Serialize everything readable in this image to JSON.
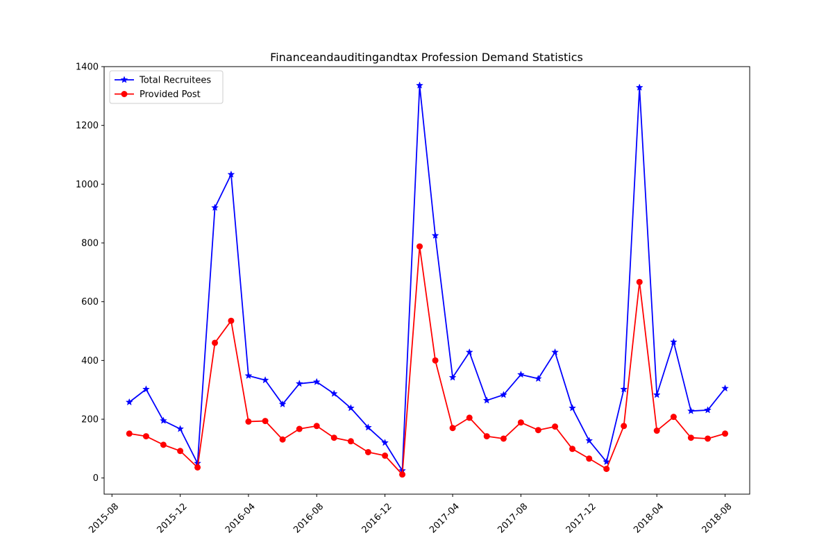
{
  "chart_data": {
    "type": "line",
    "title": "Financeandauditingandtax Profession Demand Statistics",
    "xlabel": "",
    "ylabel": "",
    "x": [
      "2015-09",
      "2015-10",
      "2015-11",
      "2015-12",
      "2016-01",
      "2016-02",
      "2016-03",
      "2016-04",
      "2016-05",
      "2016-06",
      "2016-07",
      "2016-08",
      "2016-09",
      "2016-10",
      "2016-11",
      "2016-12",
      "2017-01",
      "2017-02",
      "2017-03",
      "2017-04",
      "2017-05",
      "2017-06",
      "2017-07",
      "2017-08",
      "2017-09",
      "2017-10",
      "2017-11",
      "2017-12",
      "2018-01",
      "2018-02",
      "2018-03",
      "2018-04",
      "2018-05",
      "2018-06",
      "2018-07",
      "2018-08"
    ],
    "xticks": [
      "2015-08",
      "2015-12",
      "2016-04",
      "2016-08",
      "2016-12",
      "2017-04",
      "2017-08",
      "2017-12",
      "2018-04",
      "2018-08"
    ],
    "xlim": [
      "2015-07-18",
      "2018-09-14"
    ],
    "ylim": [
      -55,
      1400
    ],
    "yticks": [
      0,
      200,
      400,
      600,
      800,
      1000,
      1200,
      1400
    ],
    "grid": false,
    "legend_position": "top-left",
    "series": [
      {
        "name": "Total Recruitees",
        "color": "#0000ff",
        "marker": "star",
        "values": [
          258,
          302,
          195,
          167,
          50,
          920,
          1033,
          348,
          333,
          251,
          321,
          327,
          287,
          238,
          172,
          120,
          25,
          1336,
          825,
          342,
          428,
          264,
          283,
          352,
          338,
          428,
          238,
          127,
          55,
          302,
          1329,
          283,
          463,
          228,
          231,
          305
        ]
      },
      {
        "name": "Provided Post",
        "color": "#ff0000",
        "marker": "circle",
        "values": [
          151,
          142,
          113,
          92,
          36,
          460,
          535,
          192,
          194,
          131,
          167,
          177,
          137,
          125,
          88,
          76,
          12,
          788,
          400,
          170,
          205,
          142,
          134,
          189,
          163,
          175,
          99,
          66,
          31,
          177,
          667,
          161,
          208,
          137,
          134,
          151
        ]
      }
    ]
  }
}
